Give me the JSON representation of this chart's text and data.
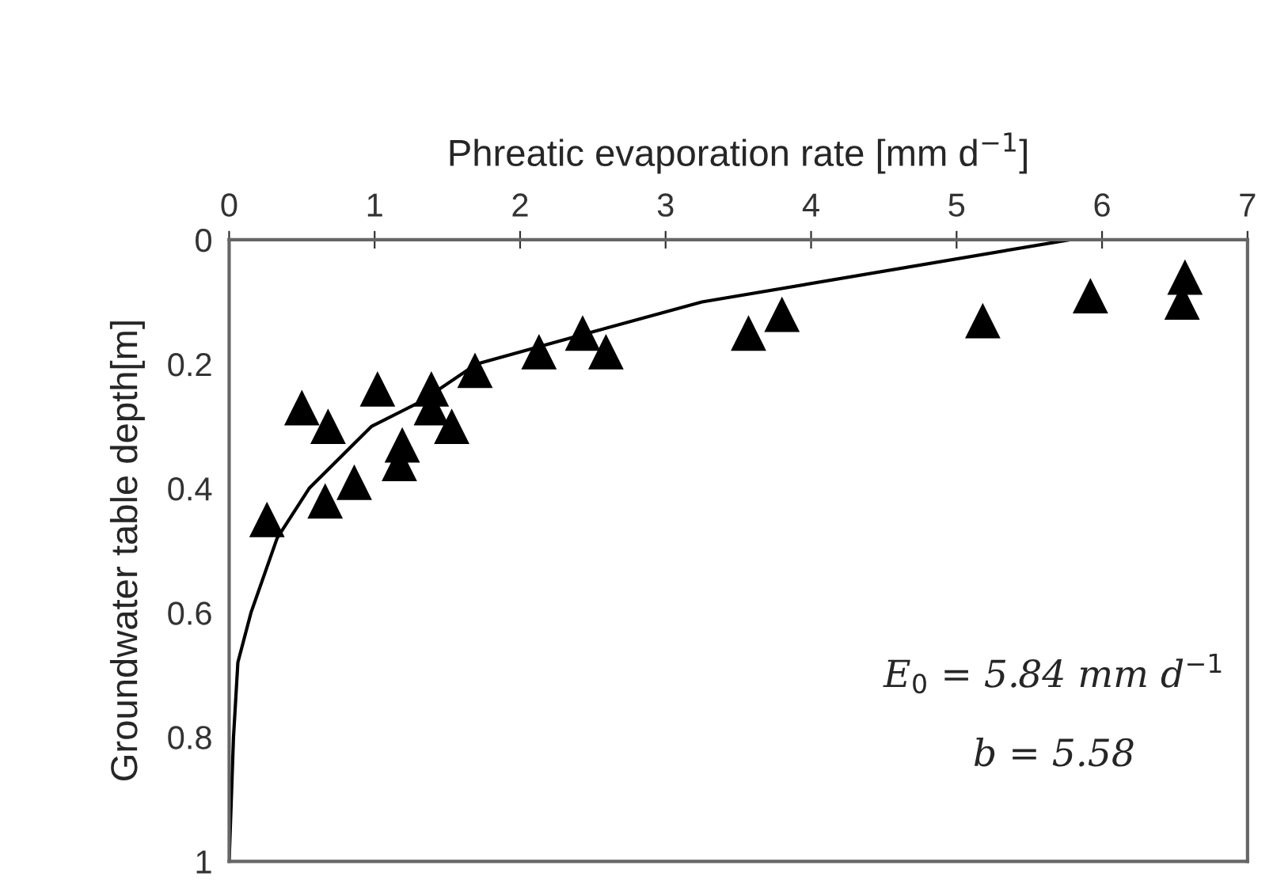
{
  "chart_data": {
    "type": "scatter",
    "xlabel": "Phreatic evaporation rate [mm d$^{−1}$]",
    "ylabel": "Groundwater table depth[m]",
    "xlim": [
      0,
      7
    ],
    "xticks": [
      0,
      1,
      2,
      3,
      4,
      5,
      6,
      7
    ],
    "ylim": [
      1,
      0
    ],
    "yticks": [
      0,
      0.2,
      0.4,
      0.6,
      0.8,
      1
    ],
    "grid": false,
    "marker": "triangle",
    "series": [
      {
        "color": "#000000",
        "x": [
          6.57,
          6.55,
          5.92,
          5.18,
          3.8,
          3.57,
          2.43,
          2.59,
          2.13,
          1.69,
          1.02,
          1.39,
          1.39,
          0.5,
          0.68,
          1.53,
          1.19,
          1.17,
          0.86,
          0.66,
          0.26
        ],
        "values": [
          0.06,
          0.1,
          0.09,
          0.13,
          0.12,
          0.15,
          0.15,
          0.18,
          0.18,
          0.21,
          0.24,
          0.24,
          0.27,
          0.27,
          0.3,
          0.3,
          0.33,
          0.36,
          0.39,
          0.42,
          0.45
        ]
      },
      {
        "type": "line",
        "color": "#000000",
        "marker": "none",
        "x": [
          5.78,
          3.25,
          2.47,
          1.7,
          1.32,
          0.98,
          0.55,
          0.33,
          0.15,
          0.06,
          0.03,
          0
        ],
        "values": [
          0,
          0.1,
          0.15,
          0.2,
          0.26,
          0.3,
          0.4,
          0.48,
          0.6,
          0.68,
          0.8,
          1
        ]
      }
    ],
    "annotations": [
      "E$_{0}$ = 5.84 mm d$^{−1}$",
      "b = 5.58"
    ]
  }
}
